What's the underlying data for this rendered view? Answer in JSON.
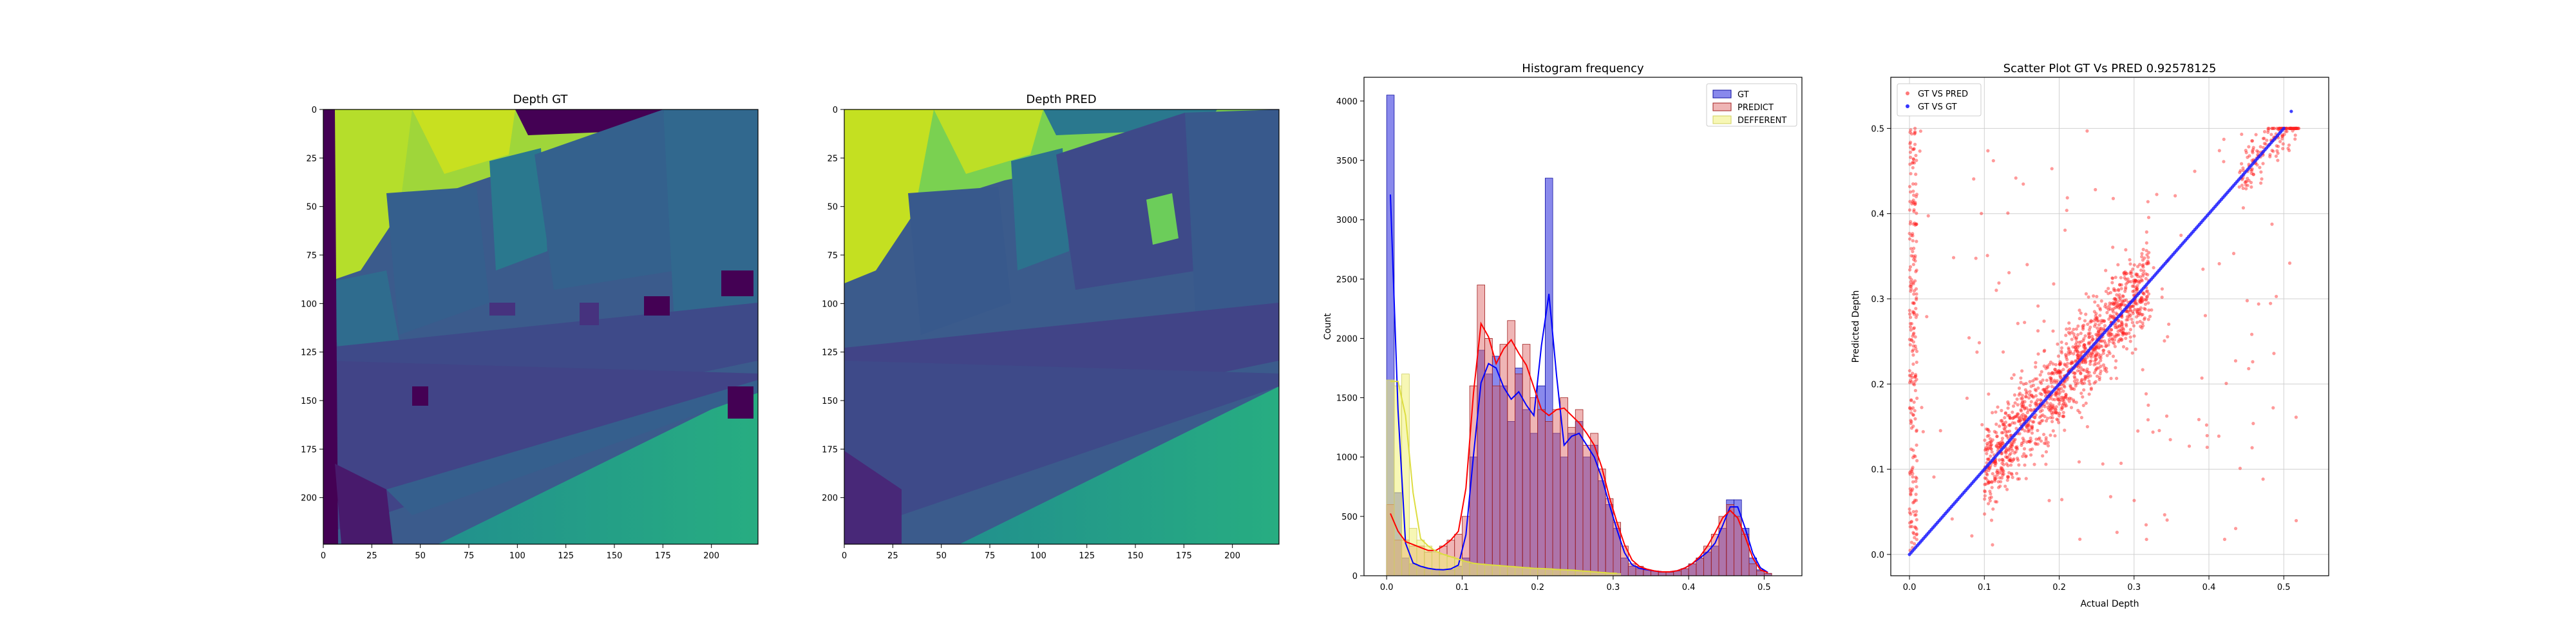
{
  "chart_data": [
    {
      "type": "heatmap",
      "title": "Depth GT",
      "xlim": [
        0,
        224
      ],
      "ylim": [
        224,
        0
      ],
      "x_ticks": [
        0,
        25,
        50,
        75,
        100,
        125,
        150,
        175,
        200
      ],
      "y_ticks": [
        0,
        25,
        50,
        75,
        100,
        125,
        150,
        175,
        200
      ],
      "colormap": "viridis"
    },
    {
      "type": "heatmap",
      "title": "Depth PRED",
      "xlim": [
        0,
        224
      ],
      "ylim": [
        224,
        0
      ],
      "x_ticks": [
        0,
        25,
        50,
        75,
        100,
        125,
        150,
        175,
        200
      ],
      "y_ticks": [
        0,
        25,
        50,
        75,
        100,
        125,
        150,
        175,
        200
      ],
      "colormap": "viridis"
    },
    {
      "type": "bar",
      "title": "Histogram frequency",
      "xlabel": "",
      "ylabel": "Count",
      "xlim": [
        -0.03,
        0.55
      ],
      "ylim": [
        0,
        4200
      ],
      "x_ticks": [
        0.0,
        0.1,
        0.2,
        0.3,
        0.4,
        0.5
      ],
      "y_ticks": [
        0,
        500,
        1000,
        1500,
        2000,
        2500,
        3000,
        3500,
        4000
      ],
      "bin_width": 0.01,
      "legend_position": "top-right",
      "series": [
        {
          "name": "GT",
          "color": "#0000ff",
          "x": [
            0.0,
            0.01,
            0.02,
            0.03,
            0.04,
            0.05,
            0.06,
            0.07,
            0.08,
            0.09,
            0.1,
            0.11,
            0.12,
            0.13,
            0.14,
            0.15,
            0.16,
            0.17,
            0.18,
            0.19,
            0.2,
            0.21,
            0.22,
            0.23,
            0.24,
            0.25,
            0.26,
            0.27,
            0.28,
            0.29,
            0.3,
            0.31,
            0.32,
            0.33,
            0.34,
            0.35,
            0.36,
            0.37,
            0.38,
            0.39,
            0.4,
            0.41,
            0.42,
            0.43,
            0.44,
            0.45,
            0.46,
            0.47,
            0.48,
            0.49,
            0.5
          ],
          "values": [
            4050,
            700,
            150,
            100,
            80,
            60,
            50,
            50,
            50,
            80,
            150,
            1000,
            1900,
            1700,
            1850,
            1600,
            1300,
            1750,
            1400,
            1200,
            1600,
            3350,
            1200,
            1000,
            1200,
            1300,
            1000,
            1100,
            800,
            600,
            400,
            150,
            80,
            60,
            50,
            40,
            30,
            30,
            40,
            60,
            100,
            150,
            200,
            250,
            400,
            640,
            640,
            400,
            150,
            50,
            20
          ]
        },
        {
          "name": "PREDICT",
          "color": "#e05050",
          "x": [
            0.0,
            0.01,
            0.02,
            0.03,
            0.04,
            0.05,
            0.06,
            0.07,
            0.08,
            0.09,
            0.1,
            0.11,
            0.12,
            0.13,
            0.14,
            0.15,
            0.16,
            0.17,
            0.18,
            0.19,
            0.2,
            0.21,
            0.22,
            0.23,
            0.24,
            0.25,
            0.26,
            0.27,
            0.28,
            0.29,
            0.3,
            0.31,
            0.32,
            0.33,
            0.34,
            0.35,
            0.36,
            0.37,
            0.38,
            0.39,
            0.4,
            0.41,
            0.42,
            0.43,
            0.44,
            0.45,
            0.46,
            0.47,
            0.48,
            0.49,
            0.5
          ],
          "values": [
            600,
            300,
            300,
            250,
            250,
            200,
            200,
            250,
            300,
            350,
            500,
            1600,
            2450,
            2000,
            1600,
            1950,
            2150,
            1700,
            1950,
            1500,
            1400,
            1300,
            1400,
            1500,
            1250,
            1400,
            1100,
            1200,
            900,
            650,
            450,
            250,
            100,
            80,
            50,
            40,
            30,
            30,
            40,
            60,
            100,
            150,
            250,
            350,
            500,
            600,
            500,
            350,
            100,
            40,
            20
          ]
        },
        {
          "name": "DEFFERENT",
          "color": "#e8e870",
          "x": [
            0.0,
            0.01,
            0.02,
            0.03,
            0.04,
            0.05,
            0.06,
            0.07,
            0.08,
            0.09,
            0.1,
            0.11,
            0.12,
            0.13,
            0.14,
            0.15,
            0.16,
            0.17,
            0.18,
            0.19,
            0.2,
            0.21,
            0.22,
            0.23,
            0.24,
            0.25,
            0.26,
            0.27,
            0.28,
            0.29,
            0.3
          ],
          "values": [
            1650,
            1600,
            1700,
            400,
            300,
            250,
            200,
            180,
            160,
            140,
            120,
            100,
            100,
            90,
            90,
            80,
            80,
            70,
            70,
            60,
            60,
            60,
            50,
            50,
            50,
            40,
            40,
            30,
            30,
            20,
            20
          ]
        }
      ]
    },
    {
      "type": "scatter",
      "title": "Scatter Plot GT Vs PRED 0.92578125",
      "xlabel": "Actual Depth",
      "ylabel": "Predicted Depth",
      "xlim": [
        -0.025,
        0.56
      ],
      "ylim": [
        -0.025,
        0.56
      ],
      "x_ticks": [
        0.0,
        0.1,
        0.2,
        0.3,
        0.4,
        0.5
      ],
      "y_ticks": [
        0.0,
        0.1,
        0.2,
        0.3,
        0.4,
        0.5
      ],
      "grid": true,
      "legend_position": "top-left",
      "series": [
        {
          "name": "GT VS PRED",
          "color": "#ff0000"
        },
        {
          "name": "GT VS GT",
          "color": "#0000ff"
        }
      ]
    }
  ]
}
